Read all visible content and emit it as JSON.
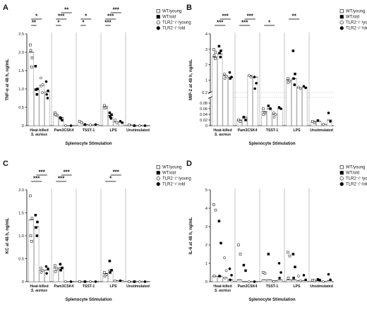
{
  "legend": [
    {
      "label": "WT/young",
      "fill": "#ffffff",
      "shape": "square"
    },
    {
      "label": "WT/old",
      "fill": "#000000",
      "shape": "square"
    },
    {
      "label": "TLR2⁻/⁻/young",
      "fill": "#ffffff",
      "shape": "circle"
    },
    {
      "label": "TLR2⁻/⁻/old",
      "fill": "#000000",
      "shape": "circle"
    }
  ],
  "chart_data": [
    {
      "panel": "A",
      "type": "bar",
      "ylabel": "TNF-α at 48 h, ng/mL",
      "xlabel": "Splenocyte Stimulation",
      "categories": [
        "Heat-killed S. aureus",
        "Pam3CSK4",
        "TSST-1",
        "LPS",
        "Unstimulated"
      ],
      "category_lines": [
        [
          "Heat-killed",
          "S. aureus"
        ],
        [
          "Pam3CSK4"
        ],
        [
          "TSST-1"
        ],
        [
          "LPS"
        ],
        [
          "Unstimulated"
        ]
      ],
      "ylim": [
        0,
        2.5
      ],
      "yticks": [
        "0",
        "0.5",
        "1.0",
        "1.5",
        "2.0",
        "2.5"
      ],
      "ytick_values": [
        0,
        0.5,
        1.0,
        1.5,
        2.0,
        2.5
      ],
      "series": [
        {
          "name": "WT/young",
          "values": [
            2.0,
            0.3,
            0.1,
            0.52,
            0.02
          ]
        },
        {
          "name": "WT/old",
          "values": [
            1.0,
            0.22,
            0.03,
            0.28,
            0.0
          ]
        },
        {
          "name": "TLR2⁻/⁻/young",
          "values": [
            1.1,
            0.0,
            0.02,
            0.1,
            0.0
          ]
        },
        {
          "name": "TLR2⁻/⁻/old",
          "values": [
            0.92,
            0.0,
            0.03,
            0.1,
            0.0
          ]
        }
      ],
      "points": [
        [
          [
            2.2,
            1.85,
            2.05,
            1.6
          ],
          [
            0.35,
            0.28,
            0.3
          ],
          [
            0.12,
            0.08
          ],
          [
            0.55,
            0.5,
            0.48
          ],
          [
            0.02
          ]
        ],
        [
          [
            1.62,
            1.0,
            0.98,
            0.85
          ],
          [
            0.22,
            0.15,
            0.2
          ],
          [
            0.03
          ],
          [
            0.35,
            0.3,
            0.25,
            0.2
          ],
          [
            0.0
          ]
        ],
        [
          [
            1.3,
            1.12,
            1.08,
            0.9
          ],
          [
            0.0
          ],
          [
            0.02
          ],
          [
            0.15,
            0.08
          ],
          [
            0.0
          ]
        ],
        [
          [
            1.2,
            0.95,
            0.85,
            0.75
          ],
          [
            0.0
          ],
          [
            0.03
          ],
          [
            0.12,
            0.08
          ],
          [
            0.0
          ]
        ]
      ],
      "significance": [
        {
          "from": 0,
          "to": 1,
          "group": 0,
          "label": "**",
          "row": 0
        },
        {
          "from": 0,
          "to": 2,
          "group": 0,
          "label": "*",
          "row": 1
        },
        {
          "from": 0,
          "to": 1,
          "group": 1,
          "label": "*",
          "row": 0
        },
        {
          "from": 0,
          "to": 2,
          "group": 1,
          "label": "***",
          "row": 1
        },
        {
          "from": 1,
          "to": 3,
          "group": 1,
          "label": "**",
          "row": 2
        },
        {
          "from": 0,
          "to": 1,
          "group": 2,
          "label": "*",
          "row": 0
        },
        {
          "from": 0,
          "to": 2,
          "group": 2,
          "label": "*",
          "row": 1
        },
        {
          "from": 0,
          "to": 1,
          "group": 3,
          "label": "***",
          "row": 0
        },
        {
          "from": 0,
          "to": 2,
          "group": 3,
          "label": "***",
          "row": 1
        },
        {
          "from": 1,
          "to": 3,
          "group": 3,
          "label": "***",
          "row": 2
        }
      ]
    },
    {
      "panel": "B",
      "type": "bar",
      "ylabel": "MIP-2 at 48 h, ng/mL",
      "xlabel": "Splenocyte Stimulation",
      "categories": [
        "Heat-killed S. aureus",
        "Pam3CSK4",
        "TSST-1",
        "LPS",
        "Unstimulated"
      ],
      "category_lines": [
        [
          "Heat-killed",
          "S. aureus"
        ],
        [
          "Pam3CSK4"
        ],
        [
          "TSST-1"
        ],
        [
          "LPS"
        ],
        [
          "Unstimulated"
        ]
      ],
      "broken_axis": {
        "lower_range": [
          0,
          0.1
        ],
        "upper_range": [
          0.2,
          4
        ]
      },
      "yticks_lower": [
        "0",
        "0.02",
        "0.04",
        "0.06",
        "0.08"
      ],
      "ytick_values_lower": [
        0,
        0.02,
        0.04,
        0.06,
        0.08
      ],
      "yticks_upper": [
        "0.2",
        "1",
        "2",
        "3",
        "4"
      ],
      "ytick_values_upper": [
        0.2,
        1,
        2,
        3,
        4
      ],
      "series": [
        {
          "name": "WT/young",
          "values": [
            2.5,
            0.02,
            0.05,
            1.0,
            0.015
          ]
        },
        {
          "name": "WT/old",
          "values": [
            2.7,
            0.03,
            0.06,
            1.1,
            0.015
          ]
        },
        {
          "name": "TLR2⁻/⁻/young",
          "values": [
            1.3,
            1.3,
            0.04,
            0.5,
            0.005
          ]
        },
        {
          "name": "TLR2⁻/⁻/old",
          "values": [
            1.2,
            1.2,
            0.06,
            0.55,
            0.02
          ]
        }
      ],
      "points": [
        [
          [
            3.0,
            2.8,
            2.6,
            2.4
          ],
          [
            0.02,
            0.015
          ],
          [
            0.06,
            0.045,
            0.04
          ],
          [
            1.1,
            0.95,
            0.85
          ],
          [
            0.015,
            0.01
          ]
        ],
        [
          [
            3.2,
            2.9,
            2.75,
            2.5
          ],
          [
            0.03,
            0.02
          ],
          [
            0.07,
            0.06
          ],
          [
            2.9,
            1.4,
            1.1,
            0.7
          ],
          [
            0.018
          ]
        ],
        [
          [
            1.4,
            1.25,
            1.1
          ],
          [
            1.3,
            1.2
          ],
          [
            0.045,
            0.04,
            0.03
          ],
          [
            0.55,
            0.45
          ],
          [
            0.005
          ]
        ],
        [
          [
            1.5,
            1.2,
            1.1
          ],
          [
            1.2,
            0.8,
            0.45
          ],
          [
            0.065,
            0.06
          ],
          [
            0.6,
            0.5
          ],
          [
            0.045,
            0.015
          ]
        ]
      ],
      "significance": [
        {
          "from": 0,
          "to": 2,
          "group": 0,
          "label": "***",
          "row": 0
        },
        {
          "from": 1,
          "to": 3,
          "group": 0,
          "label": "***",
          "row": 1
        },
        {
          "from": 0,
          "to": 2,
          "group": 1,
          "label": "***",
          "row": 0
        },
        {
          "from": 1,
          "to": 3,
          "group": 1,
          "label": "***",
          "row": 1
        },
        {
          "from": 0,
          "to": 2,
          "group": 2,
          "label": "*",
          "row": 0
        },
        {
          "from": 0,
          "to": 2,
          "group": 3,
          "label": "**",
          "row": 1
        }
      ]
    },
    {
      "panel": "C",
      "type": "bar",
      "ylabel": "KC at 48 h, ng/mL",
      "xlabel": "Splenocyte Stimulation",
      "categories": [
        "Heat-killed S. aureus",
        "Pam3CSK4",
        "TSST-1",
        "LPS",
        "Unstimulated"
      ],
      "category_lines": [
        [
          "Heat-killed",
          "S. aureus"
        ],
        [
          "Pam3CSK4"
        ],
        [
          "TSST-1"
        ],
        [
          "LPS"
        ],
        [
          "Unstimulated"
        ]
      ],
      "ylim": [
        0,
        2.0
      ],
      "yticks": [
        "0",
        "0.5",
        "1.0",
        "1.5",
        "2.0"
      ],
      "ytick_values": [
        0,
        0.5,
        1.0,
        1.5,
        2.0
      ],
      "series": [
        {
          "name": "WT/young",
          "values": [
            1.35,
            0.3,
            0.0,
            0.18,
            0.0
          ]
        },
        {
          "name": "WT/old",
          "values": [
            1.2,
            0.3,
            0.0,
            0.25,
            0.0
          ]
        },
        {
          "name": "TLR2⁻/⁻/young",
          "values": [
            0.25,
            0.0,
            0.0,
            0.02,
            0.0
          ]
        },
        {
          "name": "TLR2⁻/⁻/old",
          "values": [
            0.25,
            0.0,
            0.0,
            0.02,
            0.0
          ]
        }
      ],
      "points": [
        [
          [
            1.87,
            1.38,
            1.0,
            0.88
          ],
          [
            0.35,
            0.28,
            0.22
          ],
          [
            0.0
          ],
          [
            0.2,
            0.15,
            0.12
          ],
          [
            0.0
          ]
        ],
        [
          [
            1.45,
            1.3,
            1.18,
            1.0
          ],
          [
            0.38,
            0.3,
            0.25
          ],
          [
            0.0
          ],
          [
            0.45,
            0.25,
            0.2
          ],
          [
            0.0
          ]
        ],
        [
          [
            0.3,
            0.25,
            0.2
          ],
          [
            0.0
          ],
          [
            0.0
          ],
          [
            0.02
          ],
          [
            0.0
          ]
        ],
        [
          [
            0.33,
            0.28,
            0.18
          ],
          [
            0.0
          ],
          [
            0.0
          ],
          [
            0.02
          ],
          [
            0.0
          ]
        ]
      ],
      "significance": [
        {
          "from": 0,
          "to": 2,
          "group": 0,
          "label": "***",
          "row": 0
        },
        {
          "from": 1,
          "to": 3,
          "group": 0,
          "label": "***",
          "row": 1
        },
        {
          "from": 0,
          "to": 2,
          "group": 1,
          "label": "***",
          "row": 0
        },
        {
          "from": 1,
          "to": 3,
          "group": 1,
          "label": "***",
          "row": 1
        },
        {
          "from": 0,
          "to": 2,
          "group": 3,
          "label": "*",
          "row": 0
        },
        {
          "from": 1,
          "to": 3,
          "group": 3,
          "label": "***",
          "row": 1
        }
      ]
    },
    {
      "panel": "D",
      "type": "bar",
      "ylabel": "IL-6 at 48 h, ng/mL",
      "xlabel": "Splenocyte Stimulation",
      "categories": [
        "Heat-killed S. aureus",
        "Pam3CSK4",
        "TSST-1",
        "LPS",
        "Unstimulated"
      ],
      "category_lines": [
        [
          "Heat-killed",
          "S. aureus"
        ],
        [
          "Pam3CSK4"
        ],
        [
          "TSST-1"
        ],
        [
          "LPS"
        ],
        [
          "Unstimulated"
        ]
      ],
      "ylim": [
        0,
        5
      ],
      "yticks": [
        "0",
        "1",
        "2",
        "3",
        "4",
        "5"
      ],
      "ytick_values": [
        0,
        1,
        2,
        3,
        4,
        5
      ],
      "series": [
        {
          "name": "WT/young",
          "values": [
            0.3,
            0.1,
            0.1,
            0.1,
            0.05
          ]
        },
        {
          "name": "WT/old",
          "values": [
            0.3,
            0.0,
            0.1,
            0.1,
            0.05
          ]
        },
        {
          "name": "TLR2⁻/⁻/young",
          "values": [
            0.2,
            0.0,
            0.05,
            0.05,
            0.0
          ]
        },
        {
          "name": "TLR2⁻/⁻/old",
          "values": [
            0.1,
            0.0,
            0.1,
            0.05,
            0.05
          ]
        }
      ],
      "points": [
        [
          [
            4.2,
            3.9,
            0.3
          ],
          [
            2.0,
            1.5
          ],
          [
            0.5,
            0.45
          ],
          [
            1.6,
            1.4,
            0.2
          ],
          [
            0.08,
            0.05
          ]
        ],
        [
          [
            3.3,
            2.1,
            0.3
          ],
          [
            0.9,
            0.6
          ],
          [
            1.5
          ],
          [
            1.5,
            0.8,
            0.2
          ],
          [
            0.12,
            0.08
          ]
        ],
        [
          [
            1.3,
            0.6,
            0.2
          ],
          [
            0.0
          ],
          [
            0.0
          ],
          [
            0.3,
            0.05
          ],
          [
            0.0
          ]
        ],
        [
          [
            0.7,
            0.35,
            0.1
          ],
          [
            0.0
          ],
          [
            1.0,
            0.5,
            0.2
          ],
          [
            0.35,
            0.1
          ],
          [
            0.4,
            0.1
          ]
        ]
      ],
      "significance": []
    }
  ]
}
